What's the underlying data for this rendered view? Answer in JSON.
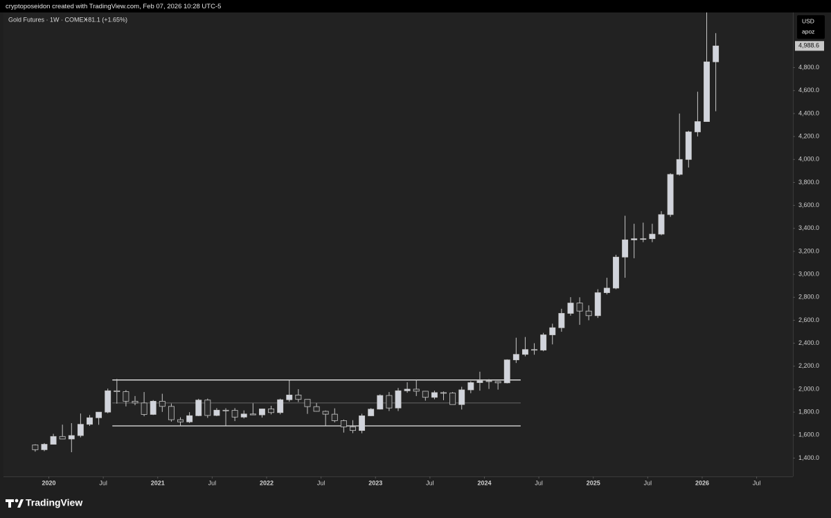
{
  "header": {
    "credit": "cryptoposeidon created with TradingView.com, Feb 07, 2026 10:28 UTC-5"
  },
  "footer": {
    "brand": "TradingView"
  },
  "chart_data": {
    "type": "candlestick",
    "title": "Gold Futures · 1W · COMEX",
    "change": "+81.1 (+1.65%)",
    "currency": "USD",
    "user": "apoz",
    "last_price": {
      "value": 4988.6,
      "label": "4,988.6"
    },
    "up_color": "#d1d4dc",
    "down_color": "#2a2a2a",
    "wick_color": "#c8c8c8",
    "x": [
      "2019-11",
      "2019-12",
      "2020-01",
      "2020-02",
      "2020-03",
      "2020-04",
      "2020-05",
      "2020-06",
      "2020-07",
      "2020-08",
      "2020-09",
      "2020-10",
      "2020-11",
      "2020-12",
      "2021-01",
      "2021-02",
      "2021-03",
      "2021-04",
      "2021-05",
      "2021-06",
      "2021-07",
      "2021-08",
      "2021-09",
      "2021-10",
      "2021-11",
      "2021-12",
      "2022-01",
      "2022-02",
      "2022-03",
      "2022-04",
      "2022-05",
      "2022-06",
      "2022-07",
      "2022-08",
      "2022-09",
      "2022-10",
      "2022-11",
      "2022-12",
      "2023-01",
      "2023-02",
      "2023-03",
      "2023-04",
      "2023-05",
      "2023-06",
      "2023-07",
      "2023-08",
      "2023-09",
      "2023-10",
      "2023-11",
      "2023-12",
      "2024-01",
      "2024-02",
      "2024-03",
      "2024-04",
      "2024-05",
      "2024-06",
      "2024-07",
      "2024-08",
      "2024-09",
      "2024-10",
      "2024-11",
      "2024-12",
      "2025-01",
      "2025-02",
      "2025-03",
      "2025-04",
      "2025-05",
      "2025-06",
      "2025-07",
      "2025-08",
      "2025-09",
      "2025-10",
      "2025-11",
      "2025-12",
      "2026-01",
      "2026-02"
    ],
    "open": [
      1514,
      1473,
      1520,
      1588,
      1566,
      1596,
      1694,
      1751,
      1800,
      1986,
      1978,
      1895,
      1880,
      1780,
      1895,
      1850,
      1734,
      1715,
      1769,
      1905,
      1771,
      1817,
      1815,
      1757,
      1784,
      1776,
      1828,
      1796,
      1908,
      1949,
      1911,
      1848,
      1807,
      1782,
      1726,
      1672,
      1640,
      1768,
      1826,
      1945,
      1836,
      1986,
      2000,
      1982,
      1929,
      1970,
      1966,
      1866,
      1994,
      2057,
      2072,
      2067,
      2055,
      2255,
      2303,
      2345,
      2340,
      2473,
      2535,
      2660,
      2750,
      2680,
      2640,
      2840,
      2880,
      3150,
      3300,
      3310,
      3310,
      3350,
      3520,
      3870,
      4000,
      4240,
      4330,
      4850
    ],
    "high": [
      1520,
      1530,
      1611,
      1691,
      1704,
      1788,
      1775,
      1800,
      2005,
      2089,
      1992,
      1940,
      1975,
      1905,
      1960,
      1875,
      1755,
      1800,
      1916,
      1918,
      1835,
      1834,
      1835,
      1815,
      1877,
      1830,
      1855,
      1917,
      2079,
      2000,
      1910,
      1880,
      1814,
      1833,
      1735,
      1730,
      1786,
      1835,
      1955,
      1975,
      2010,
      2060,
      2085,
      1985,
      1987,
      1980,
      1975,
      2021,
      2069,
      2152,
      2087,
      2070,
      2260,
      2448,
      2454,
      2400,
      2490,
      2570,
      2700,
      2801,
      2800,
      2730,
      2870,
      2970,
      3170,
      3510,
      3440,
      3450,
      3440,
      3550,
      3880,
      4400,
      4250,
      4590,
      5450,
      5100
    ],
    "low": [
      1456,
      1460,
      1520,
      1565,
      1451,
      1580,
      1680,
      1690,
      1790,
      1874,
      1850,
      1860,
      1764,
      1775,
      1802,
      1717,
      1677,
      1705,
      1765,
      1750,
      1765,
      1680,
      1722,
      1745,
      1779,
      1753,
      1780,
      1781,
      1891,
      1888,
      1785,
      1805,
      1680,
      1711,
      1622,
      1617,
      1616,
      1765,
      1823,
      1810,
      1810,
      1969,
      1940,
      1900,
      1912,
      1904,
      1865,
      1823,
      1965,
      1987,
      2002,
      1996,
      2050,
      2228,
      2286,
      2300,
      2330,
      2390,
      2500,
      2640,
      2560,
      2600,
      2620,
      2825,
      2870,
      2970,
      3140,
      3280,
      3280,
      3340,
      3500,
      3860,
      3930,
      4200,
      4330,
      4420
    ],
    "close": [
      1473,
      1520,
      1588,
      1566,
      1596,
      1694,
      1751,
      1800,
      1986,
      1978,
      1895,
      1880,
      1780,
      1895,
      1850,
      1734,
      1715,
      1769,
      1905,
      1771,
      1817,
      1815,
      1757,
      1784,
      1776,
      1828,
      1796,
      1908,
      1949,
      1911,
      1848,
      1807,
      1782,
      1726,
      1672,
      1640,
      1768,
      1826,
      1945,
      1836,
      1986,
      2000,
      1982,
      1929,
      1970,
      1966,
      1866,
      1994,
      2057,
      2072,
      2067,
      2055,
      2255,
      2303,
      2345,
      2340,
      2473,
      2535,
      2660,
      2750,
      2680,
      2640,
      2840,
      2880,
      3150,
      3300,
      3310,
      3310,
      3350,
      3520,
      3870,
      4000,
      4240,
      4330,
      4850,
      4988.6
    ],
    "channel": {
      "top": 2080,
      "middle": 1880,
      "bottom": 1680,
      "start": "2020-08",
      "end": "2024-05"
    },
    "xlim": [
      "2019-08",
      "2026-11"
    ],
    "xticks": [
      {
        "value": "2020-01",
        "label": "2020"
      },
      {
        "value": "2020-07",
        "label": "Jul"
      },
      {
        "value": "2021-01",
        "label": "2021"
      },
      {
        "value": "2021-07",
        "label": "Jul"
      },
      {
        "value": "2022-01",
        "label": "2022"
      },
      {
        "value": "2022-07",
        "label": "Jul"
      },
      {
        "value": "2023-01",
        "label": "2023"
      },
      {
        "value": "2023-07",
        "label": "Jul"
      },
      {
        "value": "2024-01",
        "label": "2024"
      },
      {
        "value": "2024-07",
        "label": "Jul"
      },
      {
        "value": "2025-01",
        "label": "2025"
      },
      {
        "value": "2025-07",
        "label": "Jul"
      },
      {
        "value": "2026-01",
        "label": "2026"
      },
      {
        "value": "2026-07",
        "label": "Jul"
      }
    ],
    "ylim": [
      1240,
      5280
    ],
    "yticks": [
      {
        "value": 1400,
        "label": "1,400.0"
      },
      {
        "value": 1600,
        "label": "1,600.0"
      },
      {
        "value": 1800,
        "label": "1,800.0"
      },
      {
        "value": 2000,
        "label": "2,000.0"
      },
      {
        "value": 2200,
        "label": "2,200.0"
      },
      {
        "value": 2400,
        "label": "2,400.0"
      },
      {
        "value": 2600,
        "label": "2,600.0"
      },
      {
        "value": 2800,
        "label": "2,800.0"
      },
      {
        "value": 3000,
        "label": "3,000.0"
      },
      {
        "value": 3200,
        "label": "3,200.0"
      },
      {
        "value": 3400,
        "label": "3,400.0"
      },
      {
        "value": 3600,
        "label": "3,600.0"
      },
      {
        "value": 3800,
        "label": "3,800.0"
      },
      {
        "value": 4000,
        "label": "4,000.0"
      },
      {
        "value": 4200,
        "label": "4,200.0"
      },
      {
        "value": 4400,
        "label": "4,400.0"
      },
      {
        "value": 4600,
        "label": "4,600.0"
      },
      {
        "value": 4800,
        "label": "4,800.0"
      }
    ]
  }
}
